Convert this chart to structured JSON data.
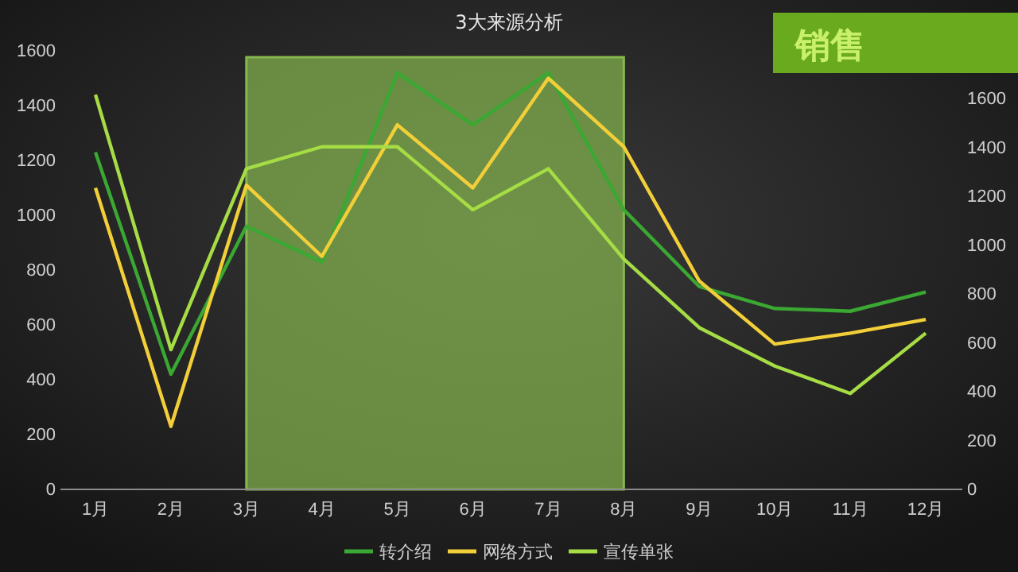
{
  "chart_data": {
    "type": "line",
    "title": "3大来源分析",
    "annotations": [
      "销售"
    ],
    "categories": [
      "1月",
      "2月",
      "3月",
      "4月",
      "5月",
      "6月",
      "7月",
      "8月",
      "9月",
      "10月",
      "11月",
      "12月"
    ],
    "series": [
      {
        "name": "转介绍",
        "color": "#3aa832",
        "values": [
          1230,
          420,
          960,
          830,
          1520,
          1330,
          1520,
          1020,
          740,
          660,
          650,
          720
        ]
      },
      {
        "name": "网络方式",
        "color": "#f2cf38",
        "values": [
          1100,
          230,
          1110,
          850,
          1330,
          1100,
          1500,
          1250,
          760,
          530,
          570,
          620
        ]
      },
      {
        "name": "宣传单张",
        "color": "#a6dc44",
        "values": [
          1440,
          510,
          1170,
          1250,
          1250,
          1020,
          1170,
          840,
          590,
          450,
          350,
          570
        ]
      }
    ],
    "ylim": [
      0,
      1600
    ],
    "yticks": [
      0,
      200,
      400,
      600,
      800,
      1000,
      1200,
      1400,
      1600
    ],
    "y2lim": [
      0,
      1600
    ],
    "y2ticks": [
      0,
      200,
      400,
      600,
      800,
      1000,
      1200,
      1400,
      1600
    ],
    "bands": [
      {
        "axis": "x",
        "from": "3月",
        "to": "8月",
        "color": "#86b84e"
      }
    ],
    "legend": "bottom",
    "grid": false,
    "marker": "none",
    "line_style": "solid"
  }
}
